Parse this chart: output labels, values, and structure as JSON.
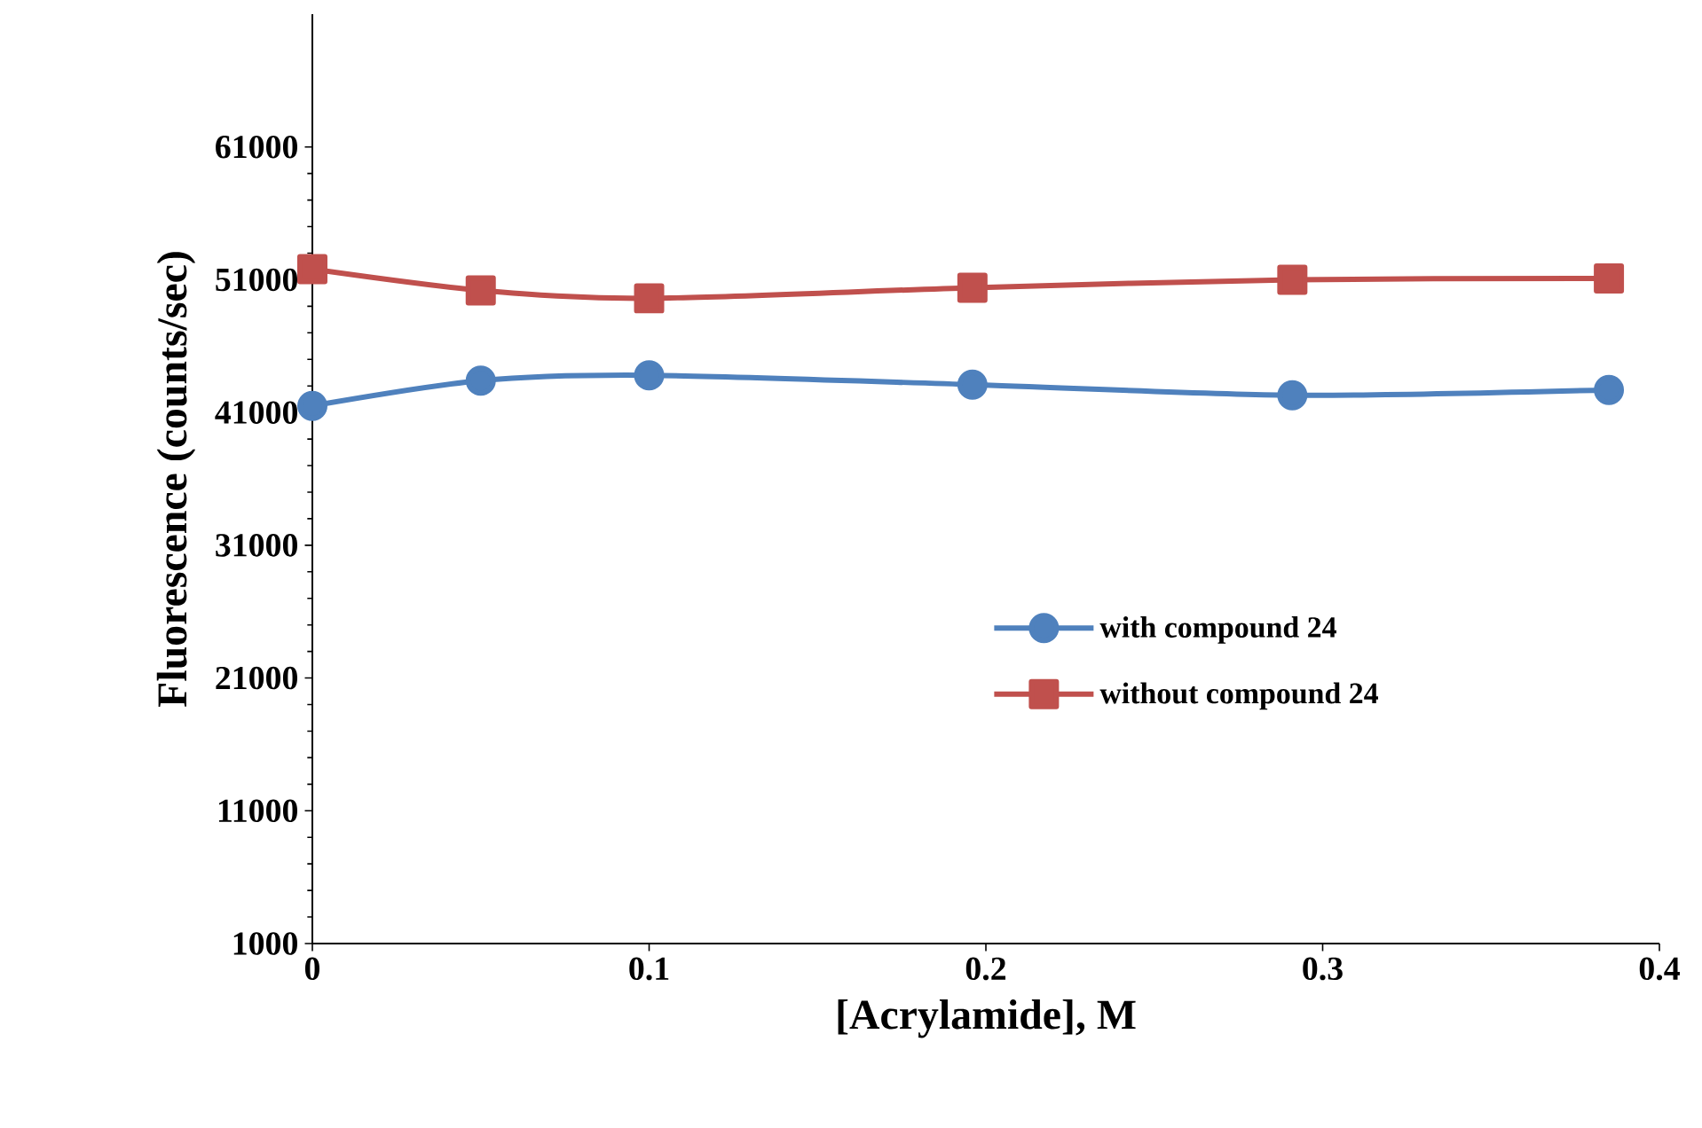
{
  "chart_data": {
    "type": "line",
    "xlabel": "[Acrylamide], M",
    "ylabel": "Fluorescence (counts/sec)",
    "x": [
      0,
      0.05,
      0.1,
      0.196,
      0.291,
      0.385
    ],
    "series": [
      {
        "name": "with compound 24",
        "color": "#4f81bd",
        "marker": "circle",
        "values": [
          41500,
          43400,
          43800,
          43100,
          42300,
          42700
        ]
      },
      {
        "name": "without compound 24",
        "color": "#c0504d",
        "marker": "square",
        "values": [
          51800,
          50200,
          49600,
          50400,
          51000,
          51100
        ]
      }
    ],
    "xlim": [
      0,
      0.4
    ],
    "xticks": [
      0,
      0.1,
      0.2,
      0.3,
      0.4
    ],
    "ylim": [
      1000,
      71000
    ],
    "yticks": [
      1000,
      11000,
      21000,
      31000,
      41000,
      51000,
      61000
    ],
    "grid": false,
    "legend": "right",
    "line_style": "solid"
  }
}
